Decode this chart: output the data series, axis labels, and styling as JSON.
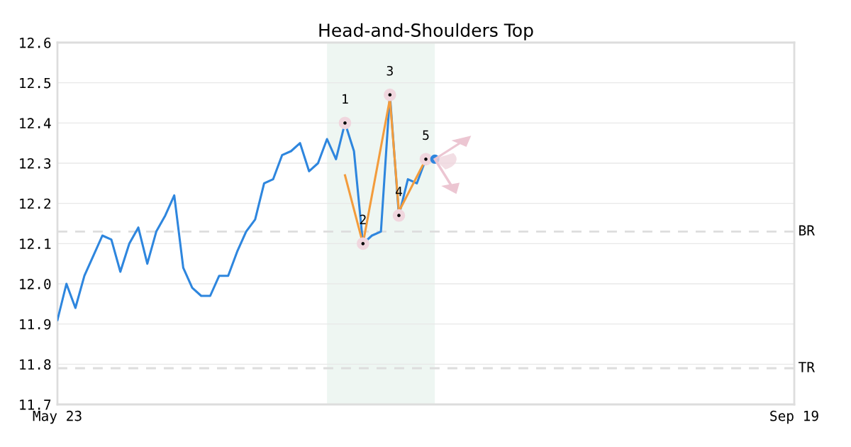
{
  "chart_data": {
    "type": "line",
    "title": "Head-and-Shoulders Top",
    "categories": [
      "May 23",
      null,
      null,
      null,
      null,
      null,
      null,
      null,
      null,
      null,
      null,
      null,
      null,
      null,
      null,
      null,
      null,
      null,
      null,
      null,
      null,
      null,
      null,
      null,
      null,
      null,
      null,
      null,
      null,
      null,
      null,
      null,
      null,
      null,
      null,
      null,
      null,
      null,
      null,
      null,
      null,
      null,
      null,
      null,
      null,
      null,
      null,
      null,
      null,
      null,
      null,
      null,
      null,
      null,
      null,
      null,
      null,
      null,
      null,
      null,
      null,
      null,
      null,
      null,
      null,
      null,
      null,
      null,
      null,
      null,
      null,
      null,
      null,
      null,
      null,
      null,
      null,
      null,
      null,
      null,
      null,
      null,
      "Sep 19"
    ],
    "ylim": [
      11.7,
      12.6
    ],
    "yticks": [
      11.7,
      11.8,
      11.9,
      {
        "value": 12,
        "label": "12.0"
      },
      12.1,
      12.2,
      12.3,
      12.4,
      12.5,
      12.6
    ],
    "grid": "y",
    "series": [
      {
        "color": "#2e86de",
        "values": [
          11.91,
          12.0,
          11.94,
          12.02,
          12.07,
          12.12,
          12.11,
          12.03,
          12.1,
          12.14,
          12.05,
          12.13,
          12.17,
          12.22,
          12.04,
          11.99,
          11.97,
          11.97,
          12.02,
          12.02,
          12.08,
          12.13,
          12.16,
          12.25,
          12.26,
          12.32,
          12.33,
          12.35,
          12.28,
          12.3,
          12.36,
          12.31,
          12.4,
          12.33,
          12.1,
          12.12,
          12.13,
          12.47,
          12.17,
          12.26,
          12.25,
          12.31,
          12.31,
          null,
          null,
          null,
          null,
          null,
          null,
          null,
          null,
          null,
          null,
          null,
          null,
          null,
          null,
          null,
          null,
          null,
          null,
          null,
          null,
          null,
          null,
          null,
          null,
          null,
          null,
          null,
          null,
          null,
          null,
          null,
          null,
          null,
          null,
          null,
          null,
          null,
          null,
          null,
          null
        ]
      },
      {
        "color": "#f39c3c",
        "values": [
          null,
          null,
          null,
          null,
          null,
          null,
          null,
          null,
          null,
          null,
          null,
          null,
          null,
          null,
          null,
          null,
          null,
          null,
          null,
          null,
          null,
          null,
          null,
          null,
          null,
          null,
          null,
          null,
          null,
          null,
          null,
          null,
          12.27,
          null,
          12.1,
          null,
          null,
          12.46,
          12.18,
          null,
          null,
          12.31,
          null,
          null,
          null,
          null,
          null,
          null,
          null,
          null,
          null,
          null,
          null,
          null,
          null,
          null,
          null,
          null,
          null,
          null,
          null,
          null,
          null,
          null,
          null,
          null,
          null,
          null,
          null,
          null,
          null,
          null,
          null,
          null,
          null,
          null,
          null,
          null,
          null,
          null,
          null,
          null,
          null
        ]
      },
      {
        "type": "scatter",
        "color": "#000000",
        "values": [
          null,
          null,
          null,
          null,
          null,
          null,
          null,
          null,
          null,
          null,
          null,
          null,
          null,
          null,
          null,
          null,
          null,
          null,
          null,
          null,
          null,
          null,
          null,
          null,
          null,
          null,
          null,
          null,
          null,
          null,
          null,
          null,
          12.4,
          null,
          12.1,
          null,
          null,
          12.47,
          12.17,
          null,
          null,
          12.31,
          null,
          null,
          null,
          null,
          null,
          null,
          null,
          null,
          null,
          null,
          null,
          null,
          null,
          null,
          null,
          null,
          null,
          null,
          null,
          null,
          null,
          null,
          null,
          null,
          null,
          null,
          null,
          null,
          null,
          null,
          null,
          null,
          null,
          null,
          null,
          null,
          null,
          null,
          null,
          null,
          null
        ]
      },
      {
        "type": "scatter",
        "color": "#2e86de",
        "values": [
          null,
          null,
          null,
          null,
          null,
          null,
          null,
          null,
          null,
          null,
          null,
          null,
          null,
          null,
          null,
          null,
          null,
          null,
          null,
          null,
          null,
          null,
          null,
          null,
          null,
          null,
          null,
          null,
          null,
          null,
          null,
          null,
          null,
          null,
          null,
          null,
          null,
          null,
          null,
          null,
          null,
          null,
          12.31,
          null,
          null,
          null,
          null,
          null,
          null,
          null,
          null,
          null,
          null,
          null,
          null,
          null,
          null,
          null,
          null,
          null,
          null,
          null,
          null,
          null,
          null,
          null,
          null,
          null,
          null,
          null,
          null,
          null,
          null,
          null,
          null,
          null,
          null,
          null,
          null,
          null,
          null,
          null,
          null
        ]
      }
    ],
    "ref_lines": [
      {
        "axis": "y",
        "value": 12.13,
        "label": "BR",
        "color": "#dddddd",
        "line_style": "dashed"
      },
      {
        "axis": "y",
        "value": 11.79,
        "label": "TR",
        "color": "#dddddd",
        "line_style": "dashed"
      }
    ],
    "annotations": [
      "1",
      "2",
      "3",
      "4",
      "5"
    ]
  }
}
